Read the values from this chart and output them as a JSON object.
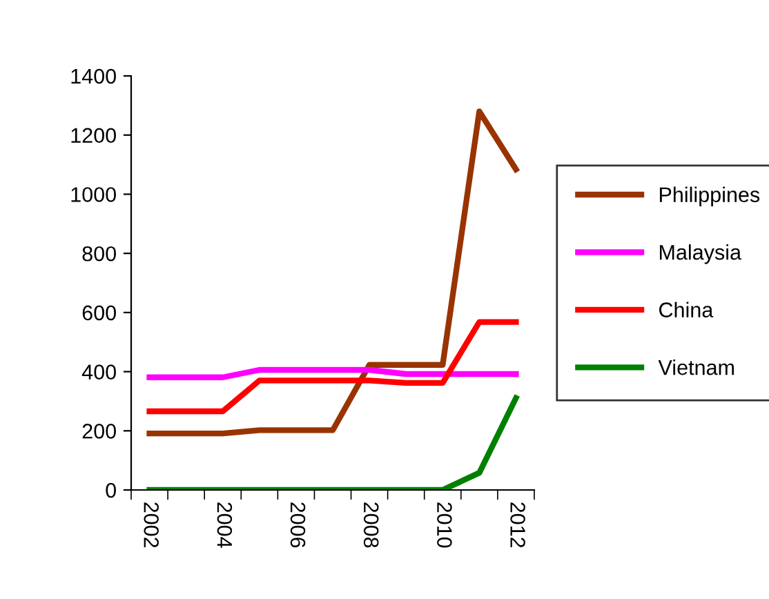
{
  "chart_data": {
    "type": "line",
    "categories": [
      "2002",
      null,
      "2004",
      null,
      "2006",
      null,
      "2008",
      null,
      "2010",
      null,
      "2012"
    ],
    "series": [
      {
        "name": "Philippines",
        "color": "#993300",
        "values": [
          191,
          191,
          191,
          202,
          202,
          202,
          423,
          423,
          423,
          1280,
          1084
        ]
      },
      {
        "name": "Malaysia",
        "color": "#ff00ff",
        "values": [
          381,
          381,
          381,
          406,
          406,
          406,
          406,
          392,
          392,
          392,
          392
        ]
      },
      {
        "name": "China",
        "color": "#ff0000",
        "values": [
          266,
          266,
          266,
          370,
          370,
          370,
          370,
          362,
          362,
          568,
          568
        ]
      },
      {
        "name": "Vietnam",
        "color": "#008000",
        "values": [
          0,
          0,
          0,
          0,
          0,
          0,
          0,
          0,
          0,
          58,
          311
        ]
      }
    ],
    "ylim": [
      0,
      1400
    ],
    "yticks": [
      0,
      200,
      400,
      600,
      800,
      1000,
      1200,
      1400
    ],
    "grid": false,
    "legend": "right",
    "marker": "none",
    "line_style": "solid"
  }
}
